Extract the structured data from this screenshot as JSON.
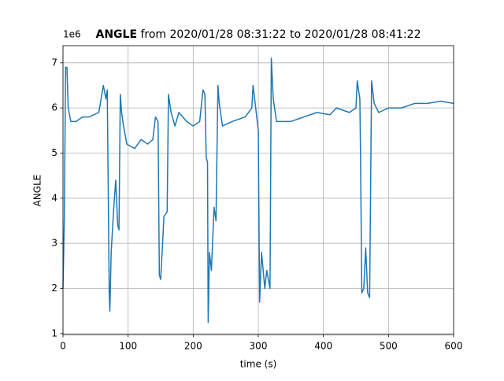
{
  "chart_data": {
    "type": "line",
    "title_bold": "ANGLE",
    "title": "from 2020/01/28 08:31:22 to 2020/01/28 08:41:22",
    "offset_text": "1e6",
    "xlabel": "time (s)",
    "ylabel": "ANGLE",
    "xlim": [
      0,
      600
    ],
    "ylim": [
      0.98,
      7.38
    ],
    "xticks": [
      0,
      100,
      200,
      300,
      400,
      500,
      600
    ],
    "yticks": [
      1,
      2,
      3,
      4,
      5,
      6,
      7
    ],
    "grid": true,
    "series": [
      {
        "name": "ANGLE",
        "color": "#1f77b4",
        "x": [
          0,
          2,
          4,
          6,
          8,
          12,
          20,
          30,
          40,
          55,
          62,
          66,
          68,
          71,
          72,
          74,
          78,
          81,
          84,
          86,
          88,
          90,
          93,
          98,
          110,
          120,
          130,
          138,
          142,
          146,
          148,
          150,
          153,
          155,
          160,
          162,
          166,
          172,
          178,
          190,
          200,
          210,
          215,
          218,
          220,
          222,
          223,
          225,
          228,
          232,
          235,
          238,
          240,
          245,
          260,
          280,
          290,
          292,
          296,
          300,
          302,
          305,
          310,
          313,
          318,
          320,
          323,
          328,
          350,
          370,
          390,
          410,
          420,
          440,
          450,
          452,
          456,
          457,
          459,
          462,
          465,
          468,
          471,
          474,
          478,
          485,
          500,
          520,
          540,
          560,
          580,
          600
        ],
        "values": [
          2.0,
          3.5,
          6.9,
          6.9,
          6.0,
          5.7,
          5.7,
          5.8,
          5.8,
          5.9,
          6.5,
          6.2,
          6.4,
          1.9,
          1.5,
          2.8,
          3.8,
          4.4,
          3.4,
          3.3,
          6.3,
          5.9,
          5.6,
          5.2,
          5.1,
          5.3,
          5.2,
          5.3,
          5.8,
          5.7,
          2.3,
          2.2,
          3.0,
          3.6,
          3.7,
          6.3,
          5.9,
          5.6,
          5.9,
          5.7,
          5.6,
          5.7,
          6.4,
          6.3,
          4.9,
          4.8,
          1.25,
          2.8,
          2.4,
          3.8,
          3.5,
          6.5,
          6.1,
          5.6,
          5.7,
          5.8,
          6.0,
          6.5,
          6.0,
          5.5,
          1.7,
          2.8,
          2.0,
          2.4,
          2.0,
          7.1,
          6.2,
          5.7,
          5.7,
          5.8,
          5.9,
          5.85,
          6.0,
          5.9,
          6.0,
          6.6,
          6.2,
          5.0,
          1.9,
          2.0,
          2.9,
          1.9,
          1.8,
          6.6,
          6.1,
          5.9,
          6.0,
          6.0,
          6.1,
          6.1,
          6.15,
          6.1
        ]
      }
    ]
  }
}
